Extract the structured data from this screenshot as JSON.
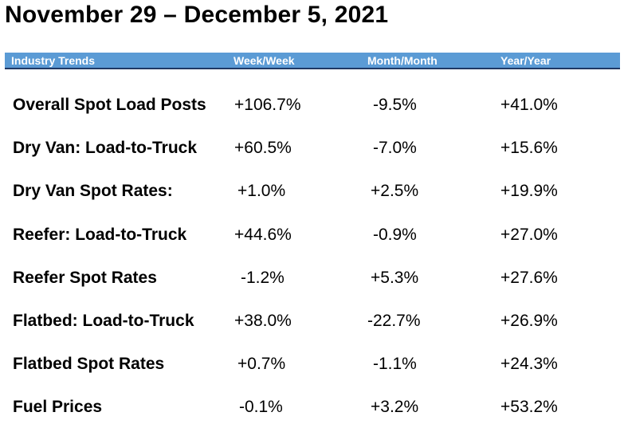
{
  "title": "November 29 – December 5, 2021",
  "header": {
    "col0": "Industry Trends",
    "col1": "Week/Week",
    "col2": "Month/Month",
    "col3": "Year/Year"
  },
  "rows": [
    {
      "label": "Overall Spot Load Posts",
      "week": "+106.7%",
      "month": "-9.5%",
      "year": "+41.0%"
    },
    {
      "label": "Dry Van: Load-to-Truck",
      "week": "+60.5%",
      "month": "-7.0%",
      "year": "+15.6%"
    },
    {
      "label": "Dry Van Spot Rates:",
      "week": "+1.0%",
      "month": "+2.5%",
      "year": "+19.9%"
    },
    {
      "label": "Reefer: Load-to-Truck",
      "week": "+44.6%",
      "month": "-0.9%",
      "year": "+27.0%"
    },
    {
      "label": "Reefer Spot Rates",
      "week": "-1.2%",
      "month": "+5.3%",
      "year": "+27.6%"
    },
    {
      "label": "Flatbed: Load-to-Truck",
      "week": "+38.0%",
      "month": "-22.7%",
      "year": "+26.9%"
    },
    {
      "label": "Flatbed Spot Rates",
      "week": "+0.7%",
      "month": "-1.1%",
      "year": "+24.3%"
    },
    {
      "label": "Fuel Prices",
      "week": "-0.1%",
      "month": "+3.2%",
      "year": "+53.2%"
    }
  ]
}
